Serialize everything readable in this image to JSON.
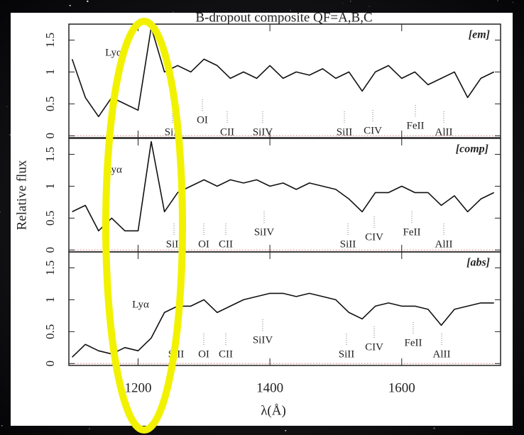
{
  "chart_data": [
    {
      "type": "line",
      "title": "B-dropout composite QF=A,B,C",
      "panel_label": "[em]",
      "annotations": [
        "Lyα",
        "SiII",
        "OI",
        "CII",
        "SiIV",
        "SiII",
        "CIV",
        "FeII",
        "AlII"
      ],
      "x": [
        1100,
        1120,
        1140,
        1160,
        1180,
        1200,
        1220,
        1240,
        1260,
        1280,
        1300,
        1320,
        1340,
        1360,
        1380,
        1400,
        1420,
        1440,
        1460,
        1480,
        1500,
        1520,
        1540,
        1560,
        1580,
        1600,
        1620,
        1640,
        1660,
        1680,
        1700,
        1720,
        1740
      ],
      "series": [
        {
          "color": "#111111",
          "values": [
            1.2,
            0.6,
            0.3,
            0.6,
            0.5,
            0.4,
            1.7,
            1.0,
            1.1,
            1.0,
            1.2,
            1.1,
            0.9,
            1.0,
            0.9,
            1.1,
            0.9,
            1.0,
            0.95,
            1.05,
            0.9,
            1.0,
            0.7,
            1.0,
            1.1,
            0.9,
            1.0,
            0.8,
            0.9,
            1.0,
            0.6,
            0.9,
            1.0
          ]
        }
      ],
      "xlim": [
        1095,
        1750
      ],
      "ylim": [
        -0.03,
        1.75
      ],
      "yticks": [
        0,
        0.5,
        1,
        1.5
      ]
    },
    {
      "type": "line",
      "panel_label": "[comp]",
      "ylabel": "Relative flux",
      "annotations": [
        "Lyα",
        "SiII",
        "OI",
        "CII",
        "SiIV",
        "SiII",
        "CIV",
        "FeII",
        "AlII"
      ],
      "x": [
        1100,
        1120,
        1140,
        1160,
        1180,
        1200,
        1220,
        1240,
        1260,
        1280,
        1300,
        1320,
        1340,
        1360,
        1380,
        1400,
        1420,
        1440,
        1460,
        1480,
        1500,
        1520,
        1540,
        1560,
        1580,
        1600,
        1620,
        1640,
        1660,
        1680,
        1700,
        1720,
        1740
      ],
      "series": [
        {
          "color": "#111111",
          "values": [
            0.6,
            0.7,
            0.3,
            0.5,
            0.3,
            0.3,
            1.7,
            0.6,
            0.9,
            1.0,
            1.1,
            1.0,
            1.1,
            1.05,
            1.1,
            1.0,
            1.05,
            0.95,
            1.05,
            1.0,
            0.95,
            0.8,
            0.6,
            0.9,
            0.9,
            1.0,
            0.9,
            0.9,
            0.7,
            0.85,
            0.6,
            0.8,
            0.9
          ]
        }
      ],
      "xlim": [
        1095,
        1750
      ],
      "ylim": [
        -0.03,
        1.75
      ],
      "yticks": [
        0,
        0.5,
        1,
        1.5
      ]
    },
    {
      "type": "line",
      "panel_label": "[abs]",
      "xlabel": "λ(Å)",
      "annotations": [
        "Lyα",
        "SiII",
        "OI",
        "CII",
        "SiIV",
        "SiII",
        "CIV",
        "FeII",
        "AlII"
      ],
      "x": [
        1100,
        1120,
        1140,
        1160,
        1180,
        1200,
        1220,
        1240,
        1260,
        1280,
        1300,
        1320,
        1340,
        1360,
        1380,
        1400,
        1420,
        1440,
        1460,
        1480,
        1500,
        1520,
        1540,
        1560,
        1580,
        1600,
        1620,
        1640,
        1660,
        1680,
        1700,
        1720,
        1740
      ],
      "series": [
        {
          "color": "#111111",
          "values": [
            0.1,
            0.3,
            0.2,
            0.15,
            0.25,
            0.2,
            0.4,
            0.8,
            0.9,
            0.9,
            1.0,
            0.8,
            0.9,
            1.0,
            1.05,
            1.1,
            1.1,
            1.05,
            1.1,
            1.05,
            1.0,
            0.8,
            0.7,
            0.9,
            0.95,
            0.9,
            0.9,
            0.85,
            0.6,
            0.85,
            0.9,
            0.95,
            0.95
          ]
        }
      ],
      "xlim": [
        1095,
        1750
      ],
      "ylim": [
        -0.03,
        1.75
      ],
      "yticks": [
        0,
        0.5,
        1,
        1.5
      ],
      "xticks": [
        1200,
        1400,
        1600
      ]
    }
  ]
}
